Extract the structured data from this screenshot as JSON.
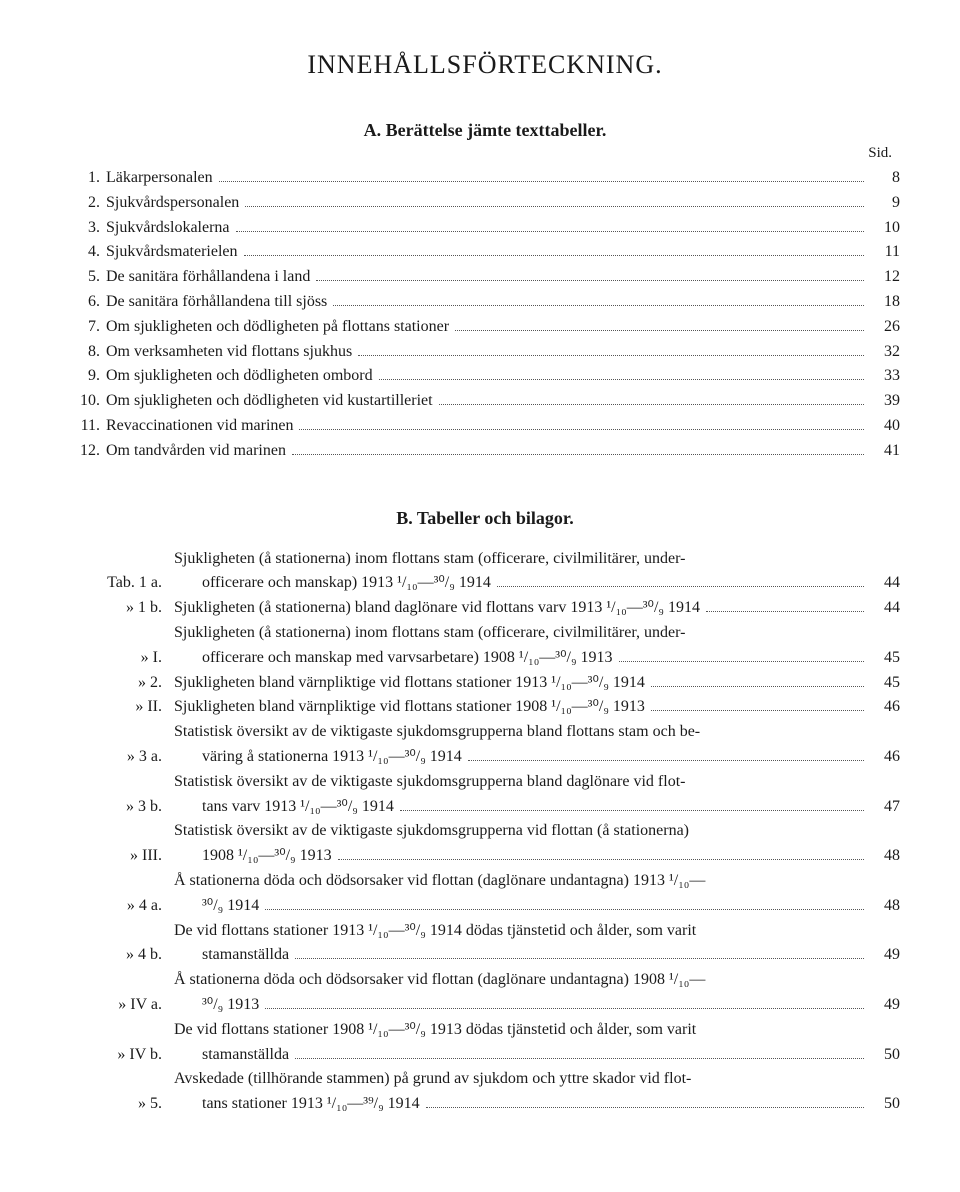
{
  "title": "INNEHÅLLSFÖRTECKNING.",
  "sectionA": {
    "heading": "A.  Berättelse jämte texttabeller.",
    "sid": "Sid.",
    "items": [
      {
        "n": "1.",
        "label": "Läkarpersonalen",
        "p": "8"
      },
      {
        "n": "2.",
        "label": "Sjukvårdspersonalen",
        "p": "9"
      },
      {
        "n": "3.",
        "label": "Sjukvårdslokalerna",
        "p": "10"
      },
      {
        "n": "4.",
        "label": "Sjukvårdsmaterielen",
        "p": "11"
      },
      {
        "n": "5.",
        "label": "De sanitära förhållandena i land",
        "p": "12"
      },
      {
        "n": "6.",
        "label": "De sanitära förhållandena till sjöss",
        "p": "18"
      },
      {
        "n": "7.",
        "label": "Om sjukligheten och dödligheten på flottans stationer",
        "p": "26"
      },
      {
        "n": "8.",
        "label": "Om verksamheten vid flottans sjukhus",
        "p": "32"
      },
      {
        "n": "9.",
        "label": "Om sjukligheten och dödligheten ombord",
        "p": "33"
      },
      {
        "n": "10.",
        "label": "Om sjukligheten och dödligheten vid kustartilleriet",
        "p": "39"
      },
      {
        "n": "11.",
        "label": "Revaccinationen vid marinen",
        "p": "40"
      },
      {
        "n": "12.",
        "label": "Om tandvården vid marinen",
        "p": "41"
      }
    ]
  },
  "sectionB": {
    "heading": "B.  Tabeller och bilagor.",
    "items": [
      {
        "key": "Tab. 1 a.",
        "lines": [
          "Sjukligheten (å stationerna) inom flottans stam (officerare, civilmilitärer, under-"
        ],
        "last": "officerare och manskap) 1913 ¹/₁₀—³⁰/₉ 1914",
        "p": "44"
      },
      {
        "key": "»     1 b.",
        "lines": [],
        "last": "Sjukligheten (å stationerna) bland daglönare vid flottans varv 1913 ¹/₁₀—³⁰/₉ 1914",
        "p": "44"
      },
      {
        "key": "»        I.",
        "lines": [
          "Sjukligheten (å stationerna) inom flottans stam (officerare, civilmilitärer, under-"
        ],
        "last": "officerare och manskap med varvsarbetare) 1908 ¹/₁₀—³⁰/₉ 1913",
        "p": "45"
      },
      {
        "key": "»        2.",
        "lines": [],
        "last": "Sjukligheten bland värnpliktige vid flottans stationer 1913 ¹/₁₀—³⁰/₉ 1914",
        "p": "45"
      },
      {
        "key": "»       II.",
        "lines": [],
        "last": "Sjukligheten bland värnpliktige vid flottans stationer 1908 ¹/₁₀—³⁰/₉ 1913",
        "p": "46"
      },
      {
        "key": "»     3 a.",
        "lines": [
          "Statistisk översikt av de viktigaste sjukdomsgrupperna bland flottans stam och be-"
        ],
        "last": "väring å stationerna 1913 ¹/₁₀—³⁰/₉ 1914",
        "p": "46"
      },
      {
        "key": "»     3 b.",
        "lines": [
          "Statistisk översikt av de viktigaste sjukdomsgrupperna bland daglönare vid flot-"
        ],
        "last": "tans varv 1913 ¹/₁₀—³⁰/₉ 1914",
        "p": "47"
      },
      {
        "key": "»     III.",
        "lines": [
          "Statistisk översikt av de viktigaste sjukdomsgrupperna vid flottan (å stationerna)"
        ],
        "last": "1908 ¹/₁₀—³⁰/₉ 1913",
        "p": "48"
      },
      {
        "key": "»     4 a.",
        "lines": [
          "Å stationerna döda och dödsorsaker vid flottan (daglönare undantagna) 1913 ¹/₁₀—"
        ],
        "last": "³⁰/₉ 1914",
        "p": "48"
      },
      {
        "key": "»     4 b.",
        "lines": [
          "De vid flottans stationer 1913 ¹/₁₀—³⁰/₉ 1914 dödas tjänstetid och ålder, som varit"
        ],
        "last": "stamanställda",
        "p": "49"
      },
      {
        "key": "»   IV a.",
        "lines": [
          "Å stationerna döda och dödsorsaker vid flottan (daglönare undantagna) 1908 ¹/₁₀—"
        ],
        "last": "³⁰/₉ 1913",
        "p": "49"
      },
      {
        "key": "»   IV b.",
        "lines": [
          "De vid flottans stationer 1908 ¹/₁₀—³⁰/₉ 1913 dödas tjänstetid och ålder, som varit"
        ],
        "last": "stamanställda",
        "p": "50"
      },
      {
        "key": "»        5.",
        "lines": [
          "Avskedade (tillhörande stammen) på grund av sjukdom och yttre skador vid flot-"
        ],
        "last": "tans stationer 1913 ¹/₁₀—³⁹/₉ 1914",
        "p": "50"
      }
    ]
  }
}
